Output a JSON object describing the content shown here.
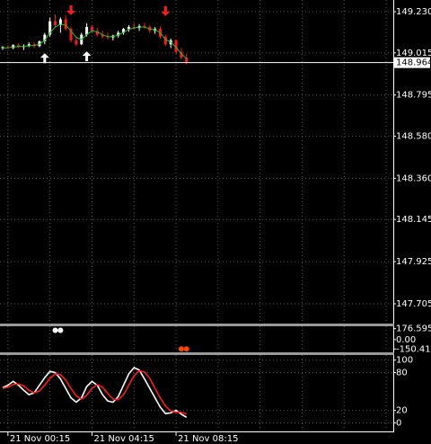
{
  "chart_data": [
    {
      "type": "candlestick",
      "categories": [
        null,
        "21 Nov 00:15",
        null,
        null,
        null,
        null,
        null,
        null,
        null,
        null,
        null,
        null,
        null,
        null,
        null,
        null,
        null,
        "21 Nov 04:15",
        null,
        null,
        null,
        null,
        null,
        null,
        null,
        null,
        null,
        null,
        null,
        null,
        null,
        null,
        null,
        "21 Nov 08:15",
        null,
        null
      ],
      "open": [
        149.04,
        149.045,
        149.04,
        149.055,
        149.045,
        149.05,
        149.06,
        149.05,
        149.075,
        149.11,
        149.18,
        149.16,
        149.19,
        149.14,
        149.08,
        149.06,
        149.11,
        149.15,
        149.13,
        149.11,
        149.1,
        149.095,
        149.105,
        149.12,
        149.14,
        149.15,
        149.145,
        149.155,
        149.15,
        149.13,
        149.14,
        149.1,
        149.06,
        149.08,
        149.02,
        148.99
      ],
      "high": [
        149.05,
        149.055,
        149.06,
        149.065,
        149.06,
        149.07,
        149.07,
        149.08,
        149.12,
        149.2,
        149.215,
        149.2,
        149.21,
        149.15,
        149.1,
        149.12,
        149.17,
        149.16,
        149.145,
        149.13,
        149.12,
        149.11,
        149.13,
        149.145,
        149.16,
        149.17,
        149.165,
        149.17,
        149.16,
        149.15,
        149.155,
        149.11,
        149.09,
        149.085,
        149.04,
        149.01
      ],
      "low": [
        149.03,
        149.035,
        149.035,
        149.04,
        149.03,
        149.045,
        149.04,
        149.045,
        149.06,
        149.1,
        149.15,
        149.12,
        149.13,
        149.07,
        149.05,
        149.055,
        149.1,
        149.12,
        149.1,
        149.09,
        149.085,
        149.08,
        149.095,
        149.11,
        149.125,
        149.135,
        149.13,
        149.14,
        149.12,
        149.115,
        149.09,
        149.05,
        149.04,
        149.01,
        148.98,
        148.955
      ],
      "close": [
        149.045,
        149.04,
        149.055,
        149.045,
        149.05,
        149.06,
        149.05,
        149.075,
        149.11,
        149.18,
        149.16,
        149.19,
        149.14,
        149.08,
        149.06,
        149.11,
        149.15,
        149.13,
        149.11,
        149.1,
        149.095,
        149.105,
        149.12,
        149.14,
        149.15,
        149.145,
        149.155,
        149.15,
        149.13,
        149.14,
        149.1,
        149.06,
        149.08,
        149.02,
        148.99,
        148.964
      ],
      "bull_color": "#ffffff",
      "bear_color": "#ff1a1a",
      "series": [
        {
          "kind": "line",
          "color": "#22c022",
          "values": [
            149.04,
            149.042,
            149.046,
            149.048,
            149.048,
            149.052,
            149.054,
            149.06,
            149.08,
            149.12,
            149.15,
            149.165,
            149.16,
            149.13,
            149.095,
            149.085,
            149.11,
            149.13,
            149.125,
            149.11,
            149.1,
            149.1,
            149.108,
            149.122,
            149.138,
            149.145,
            149.15,
            149.15,
            149.14,
            149.135,
            149.12,
            149.085,
            149.07,
            149.045,
            149.01,
            148.985
          ]
        },
        {
          "kind": "arrow-up",
          "color": "#ffffff",
          "values": [
            null,
            null,
            null,
            null,
            null,
            null,
            null,
            null,
            148.985,
            null,
            null,
            null,
            null,
            null,
            null,
            null,
            148.995,
            null,
            null,
            null,
            null,
            null,
            null,
            null,
            null,
            null,
            null,
            null,
            null,
            null,
            null,
            null,
            null,
            null,
            null,
            null
          ]
        },
        {
          "kind": "arrow-down",
          "color": "#ff1a1a",
          "values": [
            null,
            null,
            null,
            null,
            null,
            null,
            null,
            null,
            null,
            null,
            null,
            null,
            null,
            149.24,
            null,
            null,
            null,
            null,
            null,
            null,
            null,
            null,
            null,
            null,
            null,
            null,
            null,
            null,
            null,
            null,
            null,
            149.235,
            null,
            null,
            null,
            null
          ]
        }
      ],
      "last_price": 148.964,
      "ylim": [
        147.611,
        149.291
      ],
      "yticks": [
        147.705,
        147.925,
        148.145,
        {
          "value": 148.36,
          "label": "148.360"
        },
        {
          "value": 148.58,
          "label": "148.580"
        },
        148.795,
        149.015,
        {
          "value": 149.23,
          "label": "149.230"
        }
      ],
      "grid": true
    },
    {
      "type": "dots",
      "series": [
        {
          "color": "#ffffff",
          "values": [
            null,
            null,
            null,
            null,
            null,
            null,
            null,
            null,
            null,
            null,
            150,
            150,
            null,
            null,
            null,
            null,
            null,
            null,
            null,
            null,
            null,
            null,
            null,
            null,
            null,
            null,
            null,
            null,
            null,
            null,
            null,
            null,
            null,
            null,
            null,
            null
          ]
        },
        {
          "color": "#ff4500",
          "values": [
            null,
            null,
            null,
            null,
            null,
            null,
            null,
            null,
            null,
            null,
            null,
            null,
            null,
            null,
            null,
            null,
            null,
            null,
            null,
            null,
            null,
            null,
            null,
            null,
            null,
            null,
            null,
            null,
            null,
            null,
            null,
            null,
            null,
            null,
            -150,
            -150
          ]
        }
      ],
      "ylim": [
        -190,
        215
      ],
      "yticks": [
        -150.413,
        {
          "value": 0,
          "label": "0.00"
        },
        176.595
      ]
    },
    {
      "type": "line",
      "series": [
        {
          "color": "#ffffff",
          "values": [
            56,
            60,
            66,
            60,
            52,
            45,
            48,
            60,
            72,
            82,
            80,
            70,
            55,
            40,
            33,
            40,
            58,
            66,
            60,
            45,
            35,
            33,
            42,
            60,
            78,
            88,
            84,
            70,
            55,
            40,
            25,
            15,
            16,
            20,
            14,
            9
          ]
        },
        {
          "color": "#ff1a1a",
          "values": [
            55,
            57,
            61,
            62,
            59,
            52,
            48,
            51,
            60,
            71,
            78,
            77,
            68,
            55,
            43,
            38,
            44,
            55,
            61,
            57,
            47,
            38,
            37,
            45,
            60,
            75,
            83,
            81,
            71,
            55,
            40,
            27,
            19,
            17,
            17,
            14
          ]
        }
      ],
      "ylim": [
        -12,
        108
      ],
      "yticks": [
        0,
        20,
        80,
        100
      ],
      "grid": true
    }
  ]
}
